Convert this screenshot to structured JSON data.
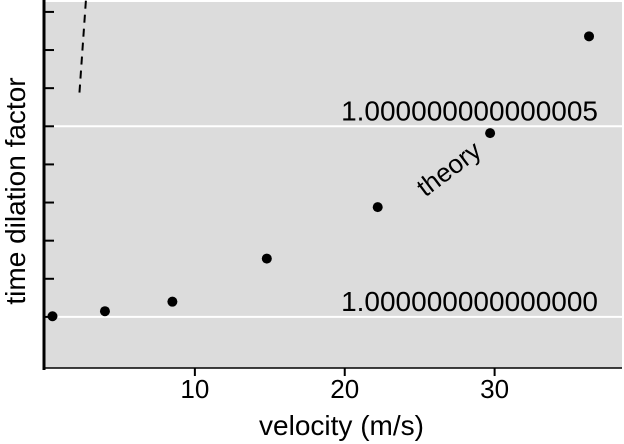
{
  "chart_data": {
    "type": "scatter",
    "title": "",
    "xlabel": "velocity (m/s)",
    "ylabel": "time dilation factor",
    "xlim": [
      0,
      38.5
    ],
    "ylim": [
      -6.7e-18,
      4.13e-17
    ],
    "x_ticks": [
      10,
      20,
      30
    ],
    "x_tick_labels": [
      "10",
      "20",
      "30"
    ],
    "y_minor_ticks": [
      0,
      5e-18,
      1e-17,
      1.5e-17,
      2e-17,
      2.5e-17,
      3e-17,
      3.5e-17,
      4e-17
    ],
    "grid": false,
    "background": "#dcdcdc",
    "series": [
      {
        "type": "scatter",
        "color": "#000000",
        "x": [
          0.5,
          4,
          8.5,
          14.8,
          22.2,
          29.7,
          36.3
        ],
        "y_offset_e-17": [
          0.009,
          0.075,
          0.2,
          0.765,
          1.44,
          2.41,
          3.68
        ]
      },
      {
        "type": "line",
        "style": "dashed",
        "color": "#000000",
        "model": "y = x^2 / (2 c^2)",
        "c_m_per_s": 299792458,
        "x_range": [
          2.3,
          38.5
        ]
      }
    ],
    "reference_lines": [
      {
        "y_offset_e-17": 0,
        "label": "1.000000000000000",
        "color": "#ffffff"
      },
      {
        "y_offset_e-17": 2.5,
        "label": "1.000000000000005",
        "color": "#ffffff"
      }
    ],
    "annotations": [
      {
        "text": "theory",
        "x": 27.3,
        "y_offset_e-17": 1.85,
        "rotation": -37
      }
    ]
  }
}
